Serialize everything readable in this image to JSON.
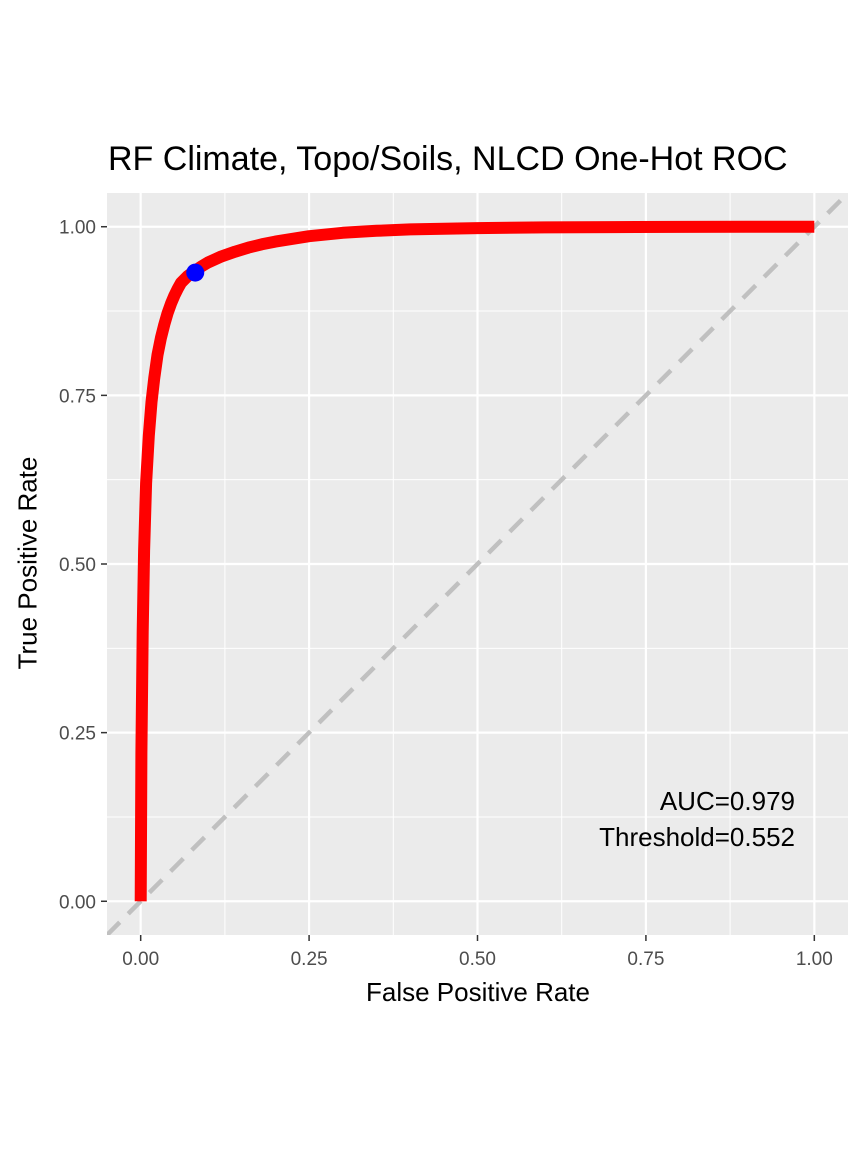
{
  "chart_data": {
    "type": "line",
    "title": "RF Climate, Topo/Soils, NLCD One-Hot ROC",
    "xlabel": "False Positive Rate",
    "ylabel": "True Positive Rate",
    "xlim": [
      -0.05,
      1.05
    ],
    "ylim": [
      -0.05,
      1.05
    ],
    "xticks": [
      "0.00",
      "0.25",
      "0.50",
      "0.75",
      "1.00"
    ],
    "yticks": [
      "0.00",
      "0.25",
      "0.50",
      "0.75",
      "1.00"
    ],
    "grid": true,
    "series": [
      {
        "color": "#ff0000",
        "x": [
          0.0,
          0.001,
          0.003,
          0.005,
          0.008,
          0.012,
          0.016,
          0.02,
          0.025,
          0.03,
          0.035,
          0.04,
          0.045,
          0.05,
          0.055,
          0.06,
          0.07,
          0.08,
          0.09,
          0.1,
          0.12,
          0.14,
          0.16,
          0.18,
          0.2,
          0.25,
          0.3,
          0.35,
          0.4,
          0.45,
          0.5,
          0.6,
          0.7,
          0.8,
          0.9,
          1.0
        ],
        "y": [
          0.0,
          0.22,
          0.4,
          0.52,
          0.62,
          0.69,
          0.74,
          0.775,
          0.81,
          0.835,
          0.855,
          0.872,
          0.886,
          0.898,
          0.908,
          0.917,
          0.927,
          0.934,
          0.941,
          0.947,
          0.956,
          0.963,
          0.969,
          0.974,
          0.978,
          0.986,
          0.991,
          0.994,
          0.996,
          0.997,
          0.998,
          0.999,
          0.9995,
          0.9998,
          1.0,
          1.0
        ]
      },
      {
        "color": "#c0c0c0",
        "style": "dashed",
        "x": [
          -0.05,
          1.05
        ],
        "y": [
          -0.05,
          1.05
        ]
      }
    ],
    "marker": {
      "x": 0.081,
      "y": 0.932,
      "color": "#0000ff"
    },
    "annotations": [
      "AUC=0.979",
      "Threshold=0.552"
    ],
    "colors": {
      "panel": "#ebebeb",
      "grid": "#ffffff"
    }
  }
}
